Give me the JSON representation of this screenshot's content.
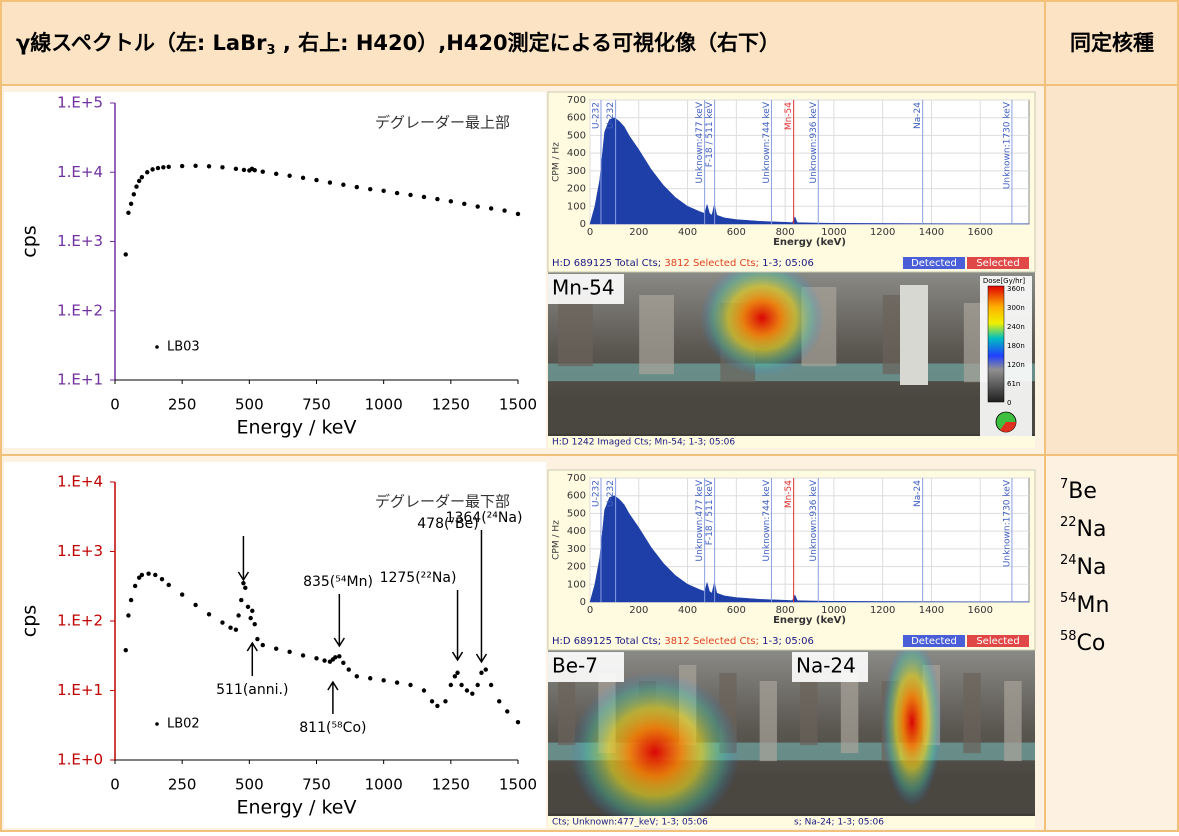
{
  "header": {
    "title_main": "γ線スペクトル（左: LaBr",
    "title_sub": "3",
    "title_rest": " , 右上: H420）,H420測定による可視化像（右下）",
    "nuclide_header": "同定核種"
  },
  "nuclides": [
    {
      "mass": "7",
      "symbol": "Be"
    },
    {
      "mass": "22",
      "symbol": "Na"
    },
    {
      "mass": "24",
      "symbol": "Na"
    },
    {
      "mass": "54",
      "symbol": "Mn"
    },
    {
      "mass": "58",
      "symbol": "Co"
    }
  ],
  "chart_data": [
    {
      "type": "scatter",
      "log_y": true,
      "axis_color": "#7030a0",
      "annotation": "デグレーダー最上部",
      "x_label": "Energy / keV",
      "y_label": "cps",
      "xlim": [
        0,
        1500
      ],
      "xticks": [
        0,
        250,
        500,
        750,
        1000,
        1250,
        1500
      ],
      "ylim": [
        10,
        100000
      ],
      "yticks": [
        {
          "value": 10,
          "label": "1.E+1"
        },
        {
          "value": 100,
          "label": "1.E+2"
        },
        {
          "value": 1000,
          "label": "1.E+3"
        },
        {
          "value": 10000,
          "label": "1.E+4"
        },
        {
          "value": 100000,
          "label": "1.E+5"
        }
      ],
      "x": [
        40,
        50,
        60,
        70,
        80,
        90,
        100,
        120,
        140,
        160,
        180,
        200,
        250,
        300,
        350,
        400,
        450,
        480,
        500,
        510,
        520,
        550,
        600,
        650,
        700,
        750,
        800,
        850,
        900,
        950,
        1000,
        1050,
        1100,
        1150,
        1200,
        1250,
        1300,
        1350,
        1400,
        1450,
        1500
      ],
      "series": [
        {
          "name": "LB03",
          "color": "#000000",
          "values": [
            650,
            2600,
            3500,
            4800,
            6200,
            7500,
            8500,
            10000,
            11000,
            11500,
            11800,
            12000,
            12300,
            12400,
            12200,
            11800,
            11200,
            10800,
            10600,
            11200,
            10700,
            10200,
            9500,
            8900,
            8300,
            7700,
            7100,
            6600,
            6100,
            5700,
            5400,
            5000,
            4700,
            4400,
            4100,
            3800,
            3500,
            3200,
            3000,
            2800,
            2500
          ]
        }
      ]
    },
    {
      "type": "area",
      "color": "#1f3fa8",
      "x_label": "Energy (keV)",
      "y_label": "CPM / Hz",
      "xlim": [
        0,
        1800
      ],
      "xticks": [
        0,
        200,
        400,
        600,
        800,
        1000,
        1200,
        1400,
        1600
      ],
      "ylim": [
        0,
        700
      ],
      "yticks": [
        0,
        100,
        200,
        300,
        400,
        500,
        600,
        700
      ],
      "x": [
        0,
        20,
        40,
        60,
        80,
        100,
        120,
        140,
        160,
        200,
        250,
        300,
        350,
        400,
        450,
        470,
        480,
        490,
        500,
        510,
        520,
        550,
        600,
        700,
        800,
        830,
        840,
        850,
        900,
        1000,
        1200,
        1400,
        1600,
        1800
      ],
      "values": [
        0,
        100,
        250,
        520,
        590,
        600,
        580,
        550,
        500,
        420,
        310,
        220,
        150,
        100,
        70,
        60,
        110,
        60,
        50,
        110,
        50,
        35,
        25,
        15,
        10,
        8,
        40,
        8,
        6,
        4,
        3,
        2,
        1,
        1
      ],
      "peak_labels": [
        "U-232",
        "U-232",
        "Unknown:477 keV",
        "F-18 / 511 keV",
        "Unknown:744 keV",
        "Mn-54",
        "Unknown:936 keV",
        "Na-24",
        "Unknown:1730 keV"
      ],
      "footer_total": "H:D 689125 Total Cts; ",
      "footer_selected": "3812 Selected Cts;",
      "footer_rest": " 1-3; 05:06",
      "button_detected": "Detected",
      "button_selected": "Selected"
    },
    {
      "type": "scatter",
      "log_y": true,
      "axis_color": "#c00000",
      "annotation": "デグレーダー最下部",
      "x_label": "Energy / keV",
      "y_label": "cps",
      "xlim": [
        0,
        1500
      ],
      "xticks": [
        0,
        250,
        500,
        750,
        1000,
        1250,
        1500
      ],
      "ylim": [
        1,
        10000
      ],
      "yticks": [
        {
          "value": 1,
          "label": "1.E+0"
        },
        {
          "value": 10,
          "label": "1.E+1"
        },
        {
          "value": 100,
          "label": "1.E+2"
        },
        {
          "value": 1000,
          "label": "1.E+3"
        },
        {
          "value": 10000,
          "label": "1.E+4"
        }
      ],
      "x": [
        40,
        50,
        60,
        75,
        90,
        100,
        125,
        150,
        175,
        200,
        250,
        300,
        350,
        400,
        430,
        450,
        460,
        470,
        478,
        485,
        495,
        505,
        511,
        520,
        530,
        550,
        600,
        650,
        700,
        750,
        780,
        800,
        811,
        820,
        835,
        850,
        870,
        900,
        950,
        1000,
        1050,
        1100,
        1150,
        1180,
        1200,
        1230,
        1250,
        1265,
        1275,
        1290,
        1310,
        1330,
        1350,
        1364,
        1380,
        1400,
        1430,
        1460,
        1500
      ],
      "series": [
        {
          "name": "LB02",
          "color": "#000000",
          "values": [
            38,
            120,
            200,
            320,
            420,
            460,
            480,
            460,
            400,
            330,
            240,
            170,
            125,
            95,
            80,
            75,
            120,
            200,
            350,
            300,
            160,
            110,
            140,
            90,
            55,
            45,
            40,
            36,
            32,
            29,
            27,
            26,
            28,
            30,
            31,
            25,
            20,
            16,
            15,
            14,
            13,
            12,
            10,
            7,
            6,
            7,
            12,
            16,
            18,
            12,
            10,
            9,
            12,
            18,
            20,
            12,
            7,
            5,
            3.5
          ]
        }
      ],
      "peak_annotations": [
        "478(⁷Be)",
        "835(⁵⁴Mn)",
        "1275(²²Na)",
        "1364(²⁴Na)",
        "511(anni.)",
        "811(⁵⁸Co)"
      ]
    },
    {
      "type": "area",
      "color": "#1f3fa8",
      "x_label": "Energy (keV)",
      "y_label": "CPM / Hz",
      "xlim": [
        0,
        1800
      ],
      "xticks": [
        0,
        200,
        400,
        600,
        800,
        1000,
        1200,
        1400,
        1600
      ],
      "ylim": [
        0,
        700
      ],
      "yticks": [
        0,
        100,
        200,
        300,
        400,
        500,
        600,
        700
      ],
      "x": [
        0,
        20,
        40,
        60,
        80,
        100,
        120,
        140,
        160,
        200,
        250,
        300,
        350,
        400,
        450,
        470,
        480,
        490,
        500,
        510,
        520,
        550,
        600,
        700,
        800,
        830,
        840,
        850,
        900,
        1000,
        1200,
        1400,
        1600,
        1800
      ],
      "values": [
        0,
        100,
        250,
        520,
        590,
        600,
        580,
        550,
        500,
        420,
        310,
        220,
        150,
        100,
        70,
        60,
        110,
        60,
        50,
        110,
        50,
        35,
        25,
        15,
        10,
        8,
        40,
        8,
        6,
        4,
        3,
        2,
        1,
        1
      ],
      "peak_labels": [
        "U-232",
        "U-232",
        "Unknown:477 keV",
        "F-18 / 511 keV",
        "Unknown:744 keV",
        "Mn-54",
        "Unknown:936 keV",
        "Na-24",
        "Unknown:1730 keV"
      ],
      "footer_total": "H:D 689125 Total Cts; ",
      "footer_selected": "3812 Selected Cts;",
      "footer_rest": " 1-3; 05:06",
      "button_detected": "Detected",
      "button_selected": "Selected"
    }
  ],
  "images": [
    {
      "label": "Mn-54",
      "footer": "H:D 1242 Imaged Cts; Mn-54; 1-3; 05:06"
    },
    {
      "label": "Be-7",
      "footer": "Cts; Unknown:477_keV; 1-3; 05:06"
    },
    {
      "label": "Na-24",
      "footer": "s; Na-24; 1-3; 05:06"
    }
  ],
  "colorbar": {
    "title": "Dose[Gy/hr]",
    "ticks": [
      "360n",
      "300n",
      "240n",
      "180n",
      "120n",
      "61n",
      "0"
    ]
  }
}
